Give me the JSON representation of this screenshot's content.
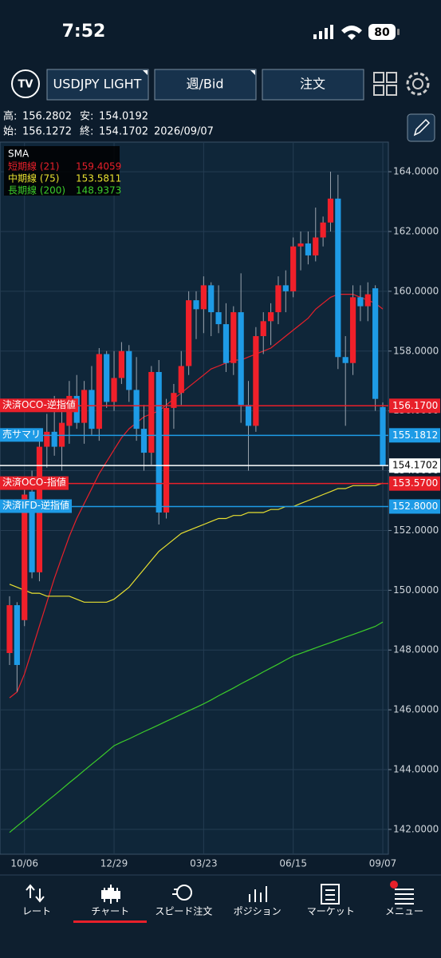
{
  "status_bar": {
    "time": "7:52",
    "battery": "80"
  },
  "toolbar": {
    "symbol": "USDJPY LIGHT",
    "period": "週/Bid",
    "order": "注文"
  },
  "info": {
    "high_label": "高:",
    "low_label": "安:",
    "open_label": "始:",
    "close_label": "終:",
    "date": "2026/09/07"
  },
  "chart_data": {
    "type": "candlestick",
    "categories": [
      null,
      null,
      "10/06",
      null,
      null,
      null,
      null,
      null,
      null,
      null,
      null,
      null,
      null,
      null,
      "12/29",
      null,
      null,
      null,
      null,
      null,
      null,
      null,
      null,
      null,
      null,
      null,
      "03/23",
      null,
      null,
      null,
      null,
      null,
      null,
      null,
      null,
      null,
      null,
      null,
      "06/15",
      null,
      null,
      null,
      null,
      null,
      null,
      null,
      null,
      null,
      null,
      null,
      "09/07"
    ],
    "candles": {
      "open": [
        147.9,
        149.5,
        149.0,
        153.3,
        150.6,
        154.8,
        155.3,
        154.8,
        155.5,
        156.5,
        155.6,
        156.7,
        155.4,
        157.9,
        156.3,
        157.1,
        158.0,
        156.7,
        155.4,
        154.6,
        157.3,
        152.6,
        156.1,
        156.6,
        157.5,
        159.7,
        159.4,
        160.2,
        159.3,
        158.9,
        157.6,
        159.3,
        156.2,
        155.5,
        158.5,
        159.0,
        159.3,
        160.2,
        160.0,
        161.5,
        161.6,
        161.2,
        161.8,
        162.3,
        163.1,
        157.8,
        157.6,
        159.8,
        159.5,
        160.1,
        156.1272
      ],
      "high": [
        149.8,
        149.6,
        153.7,
        154.0,
        155.0,
        155.9,
        156.5,
        156.0,
        157.0,
        157.2,
        157.0,
        157.5,
        158.1,
        158.0,
        158.0,
        158.3,
        158.2,
        157.8,
        156.2,
        157.5,
        157.7,
        156.4,
        156.9,
        158.0,
        160.0,
        160.0,
        160.5,
        160.3,
        160.2,
        159.6,
        159.5,
        160.6,
        157.0,
        158.8,
        159.3,
        159.6,
        160.5,
        160.7,
        161.8,
        162.0,
        162.0,
        162.8,
        162.5,
        164.0,
        163.9,
        158.5,
        160.2,
        160.2,
        160.3,
        160.2,
        156.2802
      ],
      "low": [
        147.5,
        146.6,
        148.8,
        150.4,
        150.3,
        154.1,
        154.5,
        154.0,
        154.9,
        155.4,
        154.9,
        155.2,
        155.0,
        156.1,
        156.0,
        156.9,
        156.3,
        155.0,
        154.0,
        154.2,
        152.2,
        152.4,
        155.4,
        156.2,
        157.2,
        158.4,
        158.6,
        158.5,
        158.6,
        157.3,
        157.2,
        155.6,
        154.0,
        155.3,
        157.9,
        158.2,
        158.9,
        159.3,
        159.8,
        160.7,
        160.9,
        161.0,
        161.5,
        162.0,
        157.4,
        155.5,
        157.2,
        159.0,
        159.0,
        156.0,
        154.0192
      ],
      "close": [
        149.5,
        147.5,
        153.2,
        150.6,
        154.8,
        155.3,
        154.8,
        155.6,
        156.5,
        155.6,
        156.7,
        155.4,
        157.9,
        156.3,
        157.1,
        158.0,
        156.7,
        155.4,
        154.6,
        157.3,
        152.6,
        156.1,
        156.6,
        157.5,
        159.7,
        159.4,
        160.2,
        159.3,
        158.9,
        157.6,
        159.3,
        156.2,
        155.5,
        158.5,
        159.0,
        159.3,
        160.2,
        160.0,
        161.5,
        161.6,
        161.2,
        161.8,
        162.3,
        163.1,
        157.8,
        157.6,
        159.8,
        159.5,
        159.9,
        156.4,
        154.1702
      ]
    },
    "up_color": "#f0202a",
    "down_color": "#1e9be6",
    "legend_title": "SMA",
    "series": [
      {
        "name": "短期線 (21)",
        "color": "#e8202a",
        "values": [
          146.4,
          146.6,
          147.2,
          148.0,
          148.8,
          149.6,
          150.4,
          151.1,
          151.8,
          152.4,
          152.9,
          153.4,
          153.9,
          154.3,
          154.7,
          155.1,
          155.4,
          155.6,
          155.8,
          155.9,
          156.0,
          156.2,
          156.4,
          156.6,
          156.8,
          157.0,
          157.2,
          157.4,
          157.5,
          157.6,
          157.7,
          157.7,
          157.8,
          157.9,
          158.0,
          158.1,
          158.3,
          158.5,
          158.7,
          158.9,
          159.1,
          159.4,
          159.6,
          159.8,
          159.9,
          159.9,
          159.9,
          159.8,
          159.7,
          159.6,
          159.4059
        ]
      },
      {
        "name": "中期線 (75)",
        "color": "#e8e030",
        "values": [
          150.2,
          150.1,
          150.0,
          149.9,
          149.9,
          149.8,
          149.8,
          149.8,
          149.8,
          149.7,
          149.6,
          149.6,
          149.6,
          149.6,
          149.7,
          149.9,
          150.1,
          150.4,
          150.7,
          151.0,
          151.3,
          151.5,
          151.7,
          151.9,
          152.0,
          152.1,
          152.2,
          152.3,
          152.4,
          152.4,
          152.5,
          152.5,
          152.6,
          152.6,
          152.6,
          152.7,
          152.7,
          152.8,
          152.8,
          152.9,
          153.0,
          153.1,
          153.2,
          153.3,
          153.4,
          153.4,
          153.5,
          153.5,
          153.5,
          153.5,
          153.5811
        ]
      },
      {
        "name": "長期線 (200)",
        "color": "#3ccc2a",
        "values": [
          141.9,
          142.11,
          142.31,
          142.52,
          142.73,
          142.94,
          143.14,
          143.35,
          143.56,
          143.76,
          143.97,
          144.18,
          144.38,
          144.59,
          144.8,
          144.92,
          145.03,
          145.15,
          145.27,
          145.38,
          145.5,
          145.62,
          145.73,
          145.85,
          145.97,
          146.08,
          146.2,
          146.33,
          146.47,
          146.6,
          146.73,
          146.87,
          147.0,
          147.13,
          147.27,
          147.4,
          147.53,
          147.67,
          147.8,
          147.89,
          147.98,
          148.07,
          148.16,
          148.25,
          148.34,
          148.43,
          148.52,
          148.61,
          148.7,
          148.79,
          148.9373
        ]
      }
    ],
    "order_lines": [
      {
        "name": "決済OCO-逆指値",
        "value": {
          "value": 156.17,
          "label": "156.1700"
        },
        "color": "#e8202a"
      },
      {
        "name": "売サマリ",
        "value": {
          "value": 155.1812,
          "label": "155.1812"
        },
        "color": "#1e9be6"
      },
      {
        "name": "決済OCO-指値",
        "value": {
          "value": 153.57,
          "label": "153.5700"
        },
        "color": "#e8202a"
      },
      {
        "name": "決済IFD-逆指値",
        "value": {
          "value": 152.8,
          "label": "152.8000"
        },
        "color": "#1e9be6"
      }
    ],
    "ylim": [
      141.17,
      164.99
    ],
    "yticks": [
      {
        "value": 142,
        "label": "142.0000"
      },
      {
        "value": 144,
        "label": "144.0000"
      },
      {
        "value": 146,
        "label": "146.0000"
      },
      {
        "value": 148,
        "label": "148.0000"
      },
      {
        "value": 150,
        "label": "150.0000"
      },
      {
        "value": 152,
        "label": "152.0000"
      },
      {
        "value": 154,
        "label": "154.0000"
      },
      {
        "value": 156,
        "label": "156.0000"
      },
      {
        "value": 158,
        "label": "158.0000"
      },
      {
        "value": 160,
        "label": "160.0000"
      },
      {
        "value": 162,
        "label": "162.0000"
      },
      {
        "value": 164,
        "label": "164.0000"
      }
    ],
    "grid": true
  },
  "tabs": [
    "レート",
    "チャート",
    "スピード注文",
    "ポジション",
    "マーケット",
    "メニュー"
  ]
}
